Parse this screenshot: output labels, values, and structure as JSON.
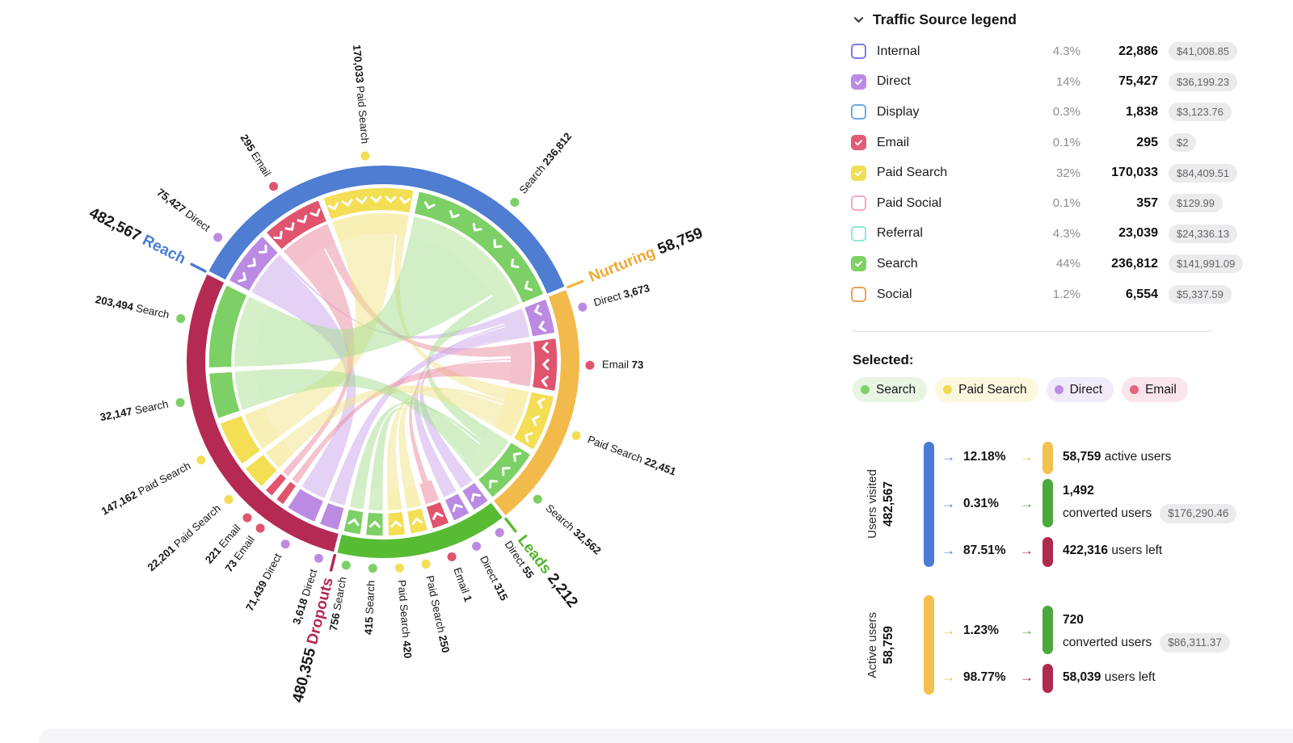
{
  "legend": {
    "title": "Traffic Source legend",
    "rows": [
      {
        "label": "Internal",
        "checked": false,
        "color": "#7b7be8",
        "pct": "4.3%",
        "value": "22,886",
        "money": "$41,008.85"
      },
      {
        "label": "Direct",
        "checked": true,
        "color": "#bc8be5",
        "pct": "14%",
        "value": "75,427",
        "money": "$36,199.23"
      },
      {
        "label": "Display",
        "checked": false,
        "color": "#6fa8e8",
        "pct": "0.3%",
        "value": "1,838",
        "money": "$3,123.76"
      },
      {
        "label": "Email",
        "checked": true,
        "color": "#e25c77",
        "pct": "0.1%",
        "value": "295",
        "money": "$2"
      },
      {
        "label": "Paid Search",
        "checked": true,
        "color": "#f2de55",
        "pct": "32%",
        "value": "170,033",
        "money": "$84,409.51"
      },
      {
        "label": "Paid Social",
        "checked": false,
        "color": "#f5a8c5",
        "pct": "0.1%",
        "value": "357",
        "money": "$129.99"
      },
      {
        "label": "Referral",
        "checked": false,
        "color": "#8fe8d8",
        "pct": "4.3%",
        "value": "23,039",
        "money": "$24,336.13"
      },
      {
        "label": "Search",
        "checked": true,
        "color": "#7ed266",
        "pct": "44%",
        "value": "236,812",
        "money": "$141,991.09"
      },
      {
        "label": "Social",
        "checked": false,
        "color": "#efa055",
        "pct": "1.2%",
        "value": "6,554",
        "money": "$5,337.59"
      }
    ]
  },
  "selected": {
    "title": "Selected:",
    "chips": [
      {
        "label": "Search",
        "dot": "#7ed266",
        "bg": "#e9f5e3"
      },
      {
        "label": "Paid Search",
        "dot": "#f0d94e",
        "bg": "#fbf8de"
      },
      {
        "label": "Direct",
        "dot": "#bc8be5",
        "bg": "#f0eaf9"
      },
      {
        "label": "Email",
        "dot": "#e5647f",
        "bg": "#f9e5ea"
      }
    ]
  },
  "funnels": [
    {
      "axis_label": "Users visited",
      "axis_value": "482,567",
      "bar_color": "#4a7cd6",
      "rows": [
        {
          "pct": "12.18%",
          "kind": "active",
          "value": "58,759",
          "text": "active users",
          "money": null
        },
        {
          "pct": "0.31%",
          "kind": "converted",
          "value": "1,492",
          "text": "converted users",
          "money": "$176,290.46"
        },
        {
          "pct": "87.51%",
          "kind": "left",
          "value": "422,316",
          "text": "users left",
          "money": null
        }
      ]
    },
    {
      "axis_label": "Active users",
      "axis_value": "58,759",
      "bar_color": "#f2c14e",
      "rows": [
        {
          "pct": "1.23%",
          "kind": "converted",
          "value": "720",
          "text": "converted users",
          "money": "$86,311.37"
        },
        {
          "pct": "98.77%",
          "kind": "left",
          "value": "58,039",
          "text": "users left",
          "money": null
        }
      ]
    }
  ],
  "colors": {
    "active": "#f2c14e",
    "converted": "#4ca83c",
    "left": "#b0294e",
    "visited": "#4a7cd6"
  },
  "chart_data": {
    "type": "chord",
    "title": "Traffic funnel chord diagram",
    "legend_position": "right",
    "stages": [
      {
        "name": "Reach",
        "total": 482567,
        "total_label": "482,567",
        "arc_color": "#4e7dd1",
        "name_color": "#4a7cd6",
        "start": -63,
        "end": 68,
        "segments": [
          {
            "source": "Direct",
            "value": 75427,
            "label": "75,427",
            "frac": 0.153
          },
          {
            "source": "Email",
            "value": 295,
            "label": "295",
            "frac": 0.168
          },
          {
            "source": "Paid Search",
            "value": 170033,
            "label": "170,033",
            "frac": 0.244
          },
          {
            "source": "Search",
            "value": 236812,
            "label": "236,812",
            "frac": 0.435
          }
        ]
      },
      {
        "name": "Nurturing",
        "total": 58759,
        "total_label": "58,759",
        "arc_color": "#f2ba4a",
        "name_color": "#f0a832",
        "start": 68,
        "end": 142,
        "segments": [
          {
            "source": "Direct",
            "value": 3673,
            "label": "3,673",
            "frac": 0.18
          },
          {
            "source": "Email",
            "value": 73,
            "label": "73",
            "frac": 0.26
          },
          {
            "source": "Paid Search",
            "value": 22451,
            "label": "22,451",
            "frac": 0.28
          },
          {
            "source": "Search",
            "value": 32562,
            "label": "32,562",
            "frac": 0.28
          }
        ]
      },
      {
        "name": "Leads",
        "total": 2212,
        "total_label": "2,212",
        "arc_color": "#57bc33",
        "name_color": "#53b62c",
        "start": 142,
        "end": 194,
        "segments": [
          {
            "source": "Direct",
            "value": 55,
            "label": "55",
            "frac": 0.143
          },
          {
            "source": "Direct",
            "value": 315,
            "label": "315",
            "frac": 0.143
          },
          {
            "source": "Email",
            "value": 1,
            "label": "1",
            "frac": 0.143
          },
          {
            "source": "Paid Search",
            "value": 250,
            "label": "250",
            "frac": 0.143
          },
          {
            "source": "Paid Search",
            "value": 420,
            "label": "420",
            "frac": 0.142
          },
          {
            "source": "Search",
            "value": 415,
            "label": "415",
            "frac": 0.143
          },
          {
            "source": "Search",
            "value": 756,
            "label": "756",
            "frac": 0.143
          }
        ]
      },
      {
        "name": "Dropouts",
        "total": 480355,
        "total_label": "480,355",
        "arc_color": "#b42a52",
        "name_color": "#b42a52",
        "start": 194,
        "end": 297,
        "segments": [
          {
            "source": "Direct",
            "value": 3618,
            "label": "3,618",
            "frac": 0.08
          },
          {
            "source": "Direct",
            "value": 71439,
            "label": "71,439",
            "frac": 0.115
          },
          {
            "source": "Email",
            "value": 73,
            "label": "73",
            "frac": 0.045
          },
          {
            "source": "Email",
            "value": 221,
            "label": "221",
            "frac": 0.045
          },
          {
            "source": "Paid Search",
            "value": 22201,
            "label": "22,201",
            "frac": 0.095
          },
          {
            "source": "Paid Search",
            "value": 147162,
            "label": "147,162",
            "frac": 0.165
          },
          {
            "source": "Search",
            "value": 32147,
            "label": "32,147",
            "frac": 0.165
          },
          {
            "source": "Search",
            "value": 203494,
            "label": "203,494",
            "frac": 0.29
          }
        ]
      }
    ],
    "sources": {
      "Direct": {
        "color": "#bb8be3",
        "light": "#e4d2f4",
        "ribbon": "#c9a3ec"
      },
      "Email": {
        "color": "#e0546e",
        "light": "#f4c0cb",
        "ribbon": "#e98ca0"
      },
      "Paid Search": {
        "color": "#f3de54",
        "light": "#f8efb4",
        "ribbon": "#f0e388"
      },
      "Search": {
        "color": "#7cd065",
        "light": "#d5efc8",
        "ribbon": "#a4de8d"
      }
    },
    "flows": [
      {
        "from": [
          0,
          0,
          0.0,
          0.93
        ],
        "to": [
          3,
          1,
          0,
          1
        ],
        "source": "Direct"
      },
      {
        "from": [
          0,
          0,
          0.94,
          1.0
        ],
        "to": [
          1,
          0,
          0.0,
          0.3
        ],
        "source": "Direct"
      },
      {
        "from": [
          0,
          1,
          0.0,
          0.72
        ],
        "to": [
          3,
          3,
          0,
          1
        ],
        "source": "Email"
      },
      {
        "from": [
          0,
          1,
          0.75,
          1.0
        ],
        "to": [
          1,
          1,
          0.0,
          0.3
        ],
        "source": "Email"
      },
      {
        "from": [
          0,
          2,
          0.0,
          0.85
        ],
        "to": [
          3,
          5,
          0,
          1
        ],
        "source": "Paid Search"
      },
      {
        "from": [
          0,
          2,
          0.87,
          1.0
        ],
        "to": [
          1,
          2,
          0.0,
          0.33
        ],
        "source": "Paid Search"
      },
      {
        "from": [
          0,
          3,
          0.0,
          0.84
        ],
        "to": [
          3,
          7,
          0,
          1
        ],
        "source": "Search"
      },
      {
        "from": [
          0,
          3,
          0.86,
          1.0
        ],
        "to": [
          1,
          3,
          0.0,
          0.33
        ],
        "source": "Search"
      },
      {
        "from": [
          1,
          0,
          0.45,
          0.95
        ],
        "to": [
          3,
          0,
          0,
          1
        ],
        "source": "Direct"
      },
      {
        "from": [
          1,
          0,
          0.34,
          0.42
        ],
        "to": [
          2,
          1,
          0,
          1
        ],
        "source": "Direct"
      },
      {
        "from": [
          1,
          0,
          0.96,
          1.0
        ],
        "to": [
          2,
          0,
          0,
          1
        ],
        "source": "Direct"
      },
      {
        "from": [
          1,
          1,
          0.45,
          0.95
        ],
        "to": [
          3,
          2,
          0,
          1
        ],
        "source": "Email"
      },
      {
        "from": [
          1,
          1,
          0.37,
          0.4
        ],
        "to": [
          2,
          2,
          0.25,
          0.75
        ],
        "source": "Email"
      },
      {
        "from": [
          1,
          2,
          0.45,
          0.95
        ],
        "to": [
          3,
          4,
          0,
          1
        ],
        "source": "Paid Search"
      },
      {
        "from": [
          1,
          2,
          0.34,
          0.42
        ],
        "to": [
          2,
          4,
          0,
          1
        ],
        "source": "Paid Search"
      },
      {
        "from": [
          1,
          2,
          0.96,
          1.0
        ],
        "to": [
          2,
          3,
          0,
          1
        ],
        "source": "Paid Search"
      },
      {
        "from": [
          1,
          3,
          0.45,
          0.95
        ],
        "to": [
          3,
          6,
          0,
          1
        ],
        "source": "Search"
      },
      {
        "from": [
          1,
          3,
          0.34,
          0.42
        ],
        "to": [
          2,
          6,
          0,
          1
        ],
        "source": "Search"
      },
      {
        "from": [
          1,
          3,
          0.96,
          1.0
        ],
        "to": [
          2,
          5,
          0,
          1
        ],
        "source": "Search"
      }
    ]
  }
}
